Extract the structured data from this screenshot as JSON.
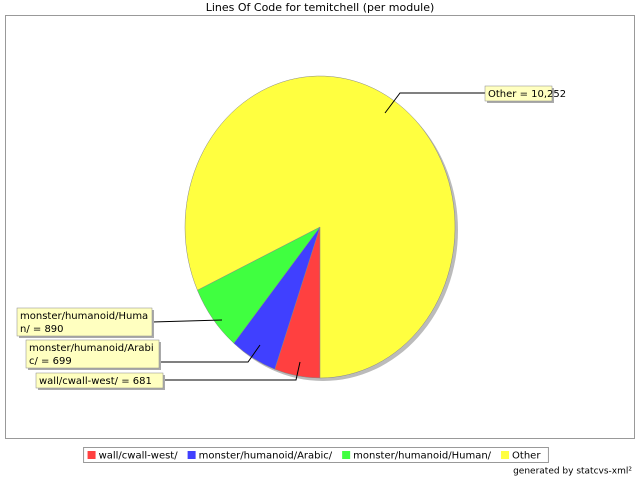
{
  "chart_data": {
    "type": "pie",
    "title": "Lines Of Code for temitchell (per module)",
    "categories": [
      "wall/cwall-west/",
      "monster/humanoid/Arabic/",
      "monster/humanoid/Human/",
      "Other"
    ],
    "values": [
      681,
      699,
      890,
      10252
    ],
    "value_labels": [
      "wall/cwall-west/ = 681",
      "monster/humanoid/Arabi\nc/ = 699",
      "monster/humanoid/Huma\nn/ = 890",
      "Other = 10,252"
    ],
    "colors": [
      "#ff4040",
      "#4040ff",
      "#40ff40",
      "#ffff40"
    ],
    "legend": "bottom"
  },
  "footer": "generated by statcvs-xml²"
}
